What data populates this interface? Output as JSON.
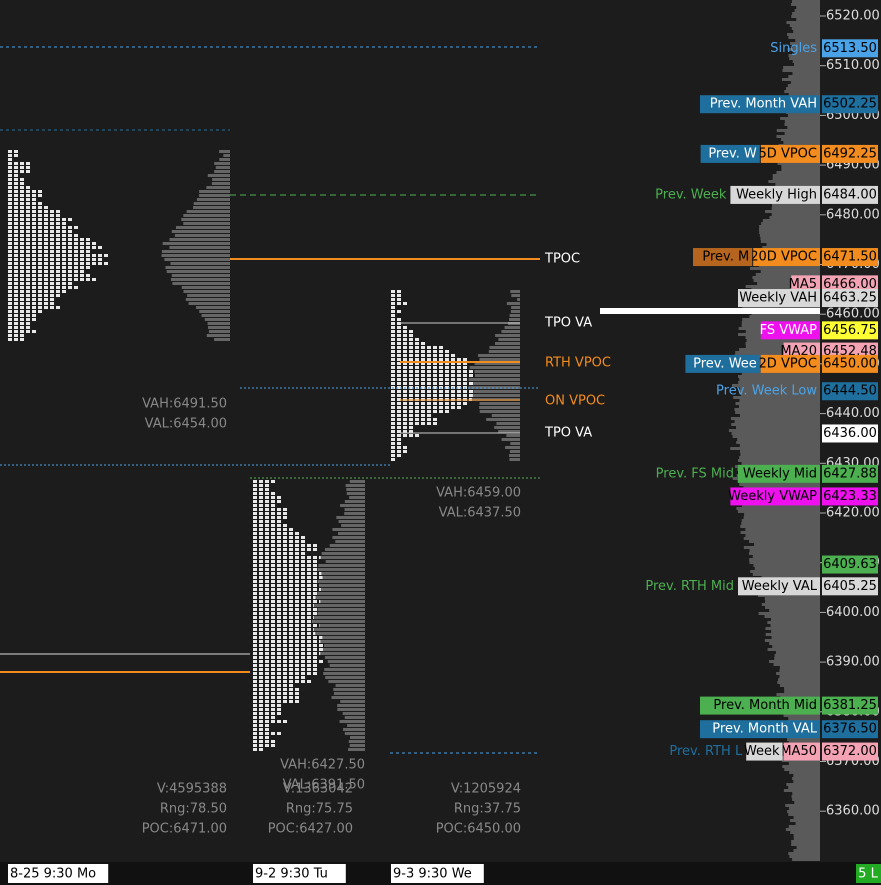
{
  "price_axis": {
    "ticks": [
      "6520.00",
      "6510.00",
      "6500.00",
      "6490.00",
      "6480.00",
      "6470.00",
      "6460.00",
      "6450.00",
      "6440.00",
      "6430.00",
      "6420.00",
      "6410.00",
      "6400.00",
      "6390.00",
      "6380.00",
      "6370.00",
      "6360.00"
    ]
  },
  "levels": [
    {
      "price": "6513.50",
      "price_bg": "#4aa3e8",
      "tags": [
        {
          "text": "Singles",
          "bg": null,
          "fg": "#4aa3e8"
        }
      ]
    },
    {
      "price": "6502.25",
      "price_bg": "#1f6f9e",
      "tags": [
        {
          "text": "Prev. Month VAH",
          "bg": "#1f6f9e",
          "fg": "#ffffff"
        }
      ]
    },
    {
      "price": "6492.25",
      "price_bg": "#f28c1e",
      "tags": [
        {
          "text": "Prev. W",
          "bg": "#1f6f9e",
          "fg": "#ffffff"
        },
        {
          "text": "5D VPOC",
          "bg": "#f28c1e",
          "fg": "#000000"
        }
      ]
    },
    {
      "price": "6484.00",
      "price_bg": "#d8d8d8",
      "tags": [
        {
          "text": "Prev. Week",
          "bg": null,
          "fg": "#4caf50"
        },
        {
          "text": "Weekly High",
          "bg": "#d8d8d8",
          "fg": "#000000"
        }
      ]
    },
    {
      "price": "6471.50",
      "price_bg": "#f28c1e",
      "tags": [
        {
          "text": "Prev. M",
          "bg": "#b5651d",
          "fg": "#000000"
        },
        {
          "text": "20D VPOC",
          "bg": "#f28c1e",
          "fg": "#000000"
        }
      ]
    },
    {
      "price": "6466.00",
      "price_bg": "#f4a3b4",
      "tags": [
        {
          "text": "MA5",
          "bg": "#f4a3b4",
          "fg": "#000000"
        }
      ]
    },
    {
      "price": "6463.25",
      "price_bg": "#d8d8d8",
      "tags": [
        {
          "text": "Weekly VAH",
          "bg": "#d8d8d8",
          "fg": "#000000"
        }
      ]
    },
    {
      "price": "6456.75",
      "price_bg": "#ffff33",
      "tags": [
        {
          "text": "FS VWAP",
          "bg": "#ee11ee",
          "fg": "#ffffff"
        }
      ]
    },
    {
      "price": "6452.48",
      "price_bg": "#f4a3b4",
      "tags": [
        {
          "text": "MA20",
          "bg": "#f4a3b4",
          "fg": "#000000"
        }
      ]
    },
    {
      "price": "6450.00",
      "price_bg": "#f28c1e",
      "tags": [
        {
          "text": "Prev. Wee",
          "bg": "#1f6f9e",
          "fg": "#ffffff"
        },
        {
          "text": "2D VPOC",
          "bg": "#f28c1e",
          "fg": "#000000"
        }
      ]
    },
    {
      "price": "6444.50",
      "price_bg": "#1f6f9e",
      "tags": [
        {
          "text": "Prev. Week Low",
          "bg": null,
          "fg": "#4aa3e8"
        }
      ]
    },
    {
      "price": "6436.00",
      "price_bg": "#ffffff",
      "tags": []
    },
    {
      "price": "6427.88",
      "price_bg": "#4caf50",
      "tags": [
        {
          "text": "Prev. FS Mid",
          "bg": null,
          "fg": "#4caf50"
        },
        {
          "text": "Weekly Mid",
          "bg": "#4caf50",
          "fg": "#000000"
        }
      ]
    },
    {
      "price": "6423.33",
      "price_bg": "#ee11ee",
      "tags": [
        {
          "text": "Weekly VWAP",
          "bg": "#ee11ee",
          "fg": "#000000"
        }
      ]
    },
    {
      "price": "6409.63",
      "price_bg": "#4caf50",
      "tags": []
    },
    {
      "price": "6405.25",
      "price_bg": "#d8d8d8",
      "tags": [
        {
          "text": "Prev. RTH Mid",
          "bg": null,
          "fg": "#4caf50"
        },
        {
          "text": "Weekly VAL",
          "bg": "#d8d8d8",
          "fg": "#000000"
        }
      ]
    },
    {
      "price": "6381.25",
      "price_bg": "#4caf50",
      "tags": [
        {
          "text": "Prev. Month Mid",
          "bg": "#4caf50",
          "fg": "#000000"
        }
      ]
    },
    {
      "price": "6376.50",
      "price_bg": "#1f6f9e",
      "tags": [
        {
          "text": "Prev. Month VAL",
          "bg": "#1f6f9e",
          "fg": "#ffffff"
        }
      ]
    },
    {
      "price": "6372.00",
      "price_bg": "#f4a3b4",
      "tags": [
        {
          "text": "Prev. RTH L",
          "bg": null,
          "fg": "#1f6f9e"
        },
        {
          "text": "Week",
          "bg": "#d8d8d8",
          "fg": "#000000"
        },
        {
          "text": "MA50",
          "bg": "#f4a3b4",
          "fg": "#000000"
        }
      ]
    }
  ],
  "annotations": [
    {
      "text": "TPOC",
      "color": "#ffffff"
    },
    {
      "text": "TPO VA",
      "color": "#ffffff"
    },
    {
      "text": "RTH VPOC",
      "color": "#f28c1e"
    },
    {
      "text": "ON VPOC",
      "color": "#f28c1e"
    },
    {
      "text": "TPO VA",
      "color": "#ffffff"
    }
  ],
  "profile_stats": [
    {
      "value_area": [
        "VAH:6491.50",
        "VAL:6454.00"
      ],
      "summary": [
        "V:4595388",
        "Rng:78.50",
        "POC:6471.00"
      ]
    },
    {
      "value_area": [
        "VAH:6427.50",
        "VAL:6391.50"
      ],
      "summary": [
        "V:1363042",
        "Rng:75.75",
        "POC:6427.00"
      ]
    },
    {
      "value_area": [
        "VAH:6459.00",
        "VAL:6437.50"
      ],
      "summary": [
        "V:1205924",
        "Rng:37.75",
        "POC:6450.00"
      ]
    }
  ],
  "time_axis": [
    "8-25  9:30 Mo",
    "9-2  9:30 Tu",
    "9-3  9:30 We"
  ],
  "status": "5 L"
}
